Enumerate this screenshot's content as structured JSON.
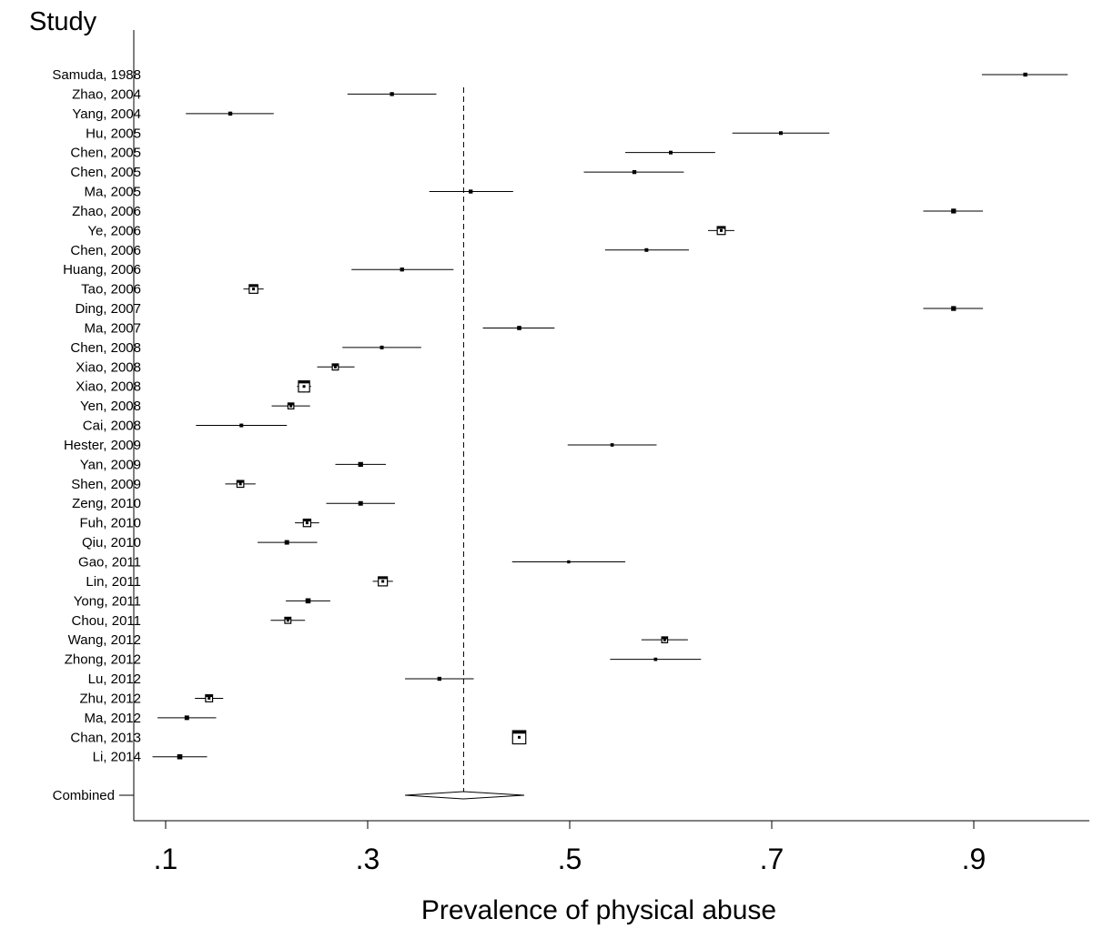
{
  "chart_data": {
    "type": "forest",
    "column_title": "Study",
    "xlabel": "Prevalence of physical abuse",
    "x_ticks": [
      ".1",
      ".3",
      ".5",
      ".7",
      ".9"
    ],
    "x_tick_values": [
      0.1,
      0.3,
      0.5,
      0.7,
      0.9
    ],
    "xlim": [
      0.07,
      1.0
    ],
    "reference_line": 0.395,
    "studies": [
      {
        "label": "Samuda, 1988",
        "estimate": 0.951,
        "lower": 0.908,
        "upper": 0.993,
        "weight": 0.6
      },
      {
        "label": "Zhao, 2004",
        "estimate": 0.324,
        "lower": 0.28,
        "upper": 0.368,
        "weight": 0.6
      },
      {
        "label": "Yang, 2004",
        "estimate": 0.164,
        "lower": 0.12,
        "upper": 0.207,
        "weight": 0.6
      },
      {
        "label": "Hu, 2005",
        "estimate": 0.709,
        "lower": 0.661,
        "upper": 0.757,
        "weight": 0.5
      },
      {
        "label": "Chen, 2005",
        "estimate": 0.6,
        "lower": 0.555,
        "upper": 0.644,
        "weight": 0.5
      },
      {
        "label": "Chen, 2005",
        "estimate": 0.564,
        "lower": 0.514,
        "upper": 0.613,
        "weight": 0.6
      },
      {
        "label": "Ma, 2005",
        "estimate": 0.402,
        "lower": 0.361,
        "upper": 0.444,
        "weight": 0.6
      },
      {
        "label": "Zhao, 2006",
        "estimate": 0.88,
        "lower": 0.85,
        "upper": 0.909,
        "weight": 0.9
      },
      {
        "label": "Ye, 2006",
        "estimate": 0.65,
        "lower": 0.637,
        "upper": 0.663,
        "weight": 2.2
      },
      {
        "label": "Chen, 2006",
        "estimate": 0.576,
        "lower": 0.535,
        "upper": 0.618,
        "weight": 0.5
      },
      {
        "label": "Huang, 2006",
        "estimate": 0.334,
        "lower": 0.284,
        "upper": 0.385,
        "weight": 0.6
      },
      {
        "label": "Tao, 2006",
        "estimate": 0.187,
        "lower": 0.177,
        "upper": 0.197,
        "weight": 2.5
      },
      {
        "label": "Ding, 2007",
        "estimate": 0.88,
        "lower": 0.85,
        "upper": 0.909,
        "weight": 0.9
      },
      {
        "label": "Ma, 2007",
        "estimate": 0.45,
        "lower": 0.414,
        "upper": 0.485,
        "weight": 0.7
      },
      {
        "label": "Chen, 2008",
        "estimate": 0.314,
        "lower": 0.275,
        "upper": 0.353,
        "weight": 0.5
      },
      {
        "label": "Xiao, 2008",
        "estimate": 0.268,
        "lower": 0.25,
        "upper": 0.287,
        "weight": 1.4
      },
      {
        "label": "Xiao, 2008",
        "estimate": 0.237,
        "lower": 0.23,
        "upper": 0.244,
        "weight": 3.6
      },
      {
        "label": "Yen, 2008",
        "estimate": 0.224,
        "lower": 0.205,
        "upper": 0.243,
        "weight": 1.3
      },
      {
        "label": "Cai, 2008",
        "estimate": 0.175,
        "lower": 0.13,
        "upper": 0.22,
        "weight": 0.5
      },
      {
        "label": "Hester, 2009",
        "estimate": 0.542,
        "lower": 0.498,
        "upper": 0.586,
        "weight": 0.4
      },
      {
        "label": "Yan, 2009",
        "estimate": 0.293,
        "lower": 0.268,
        "upper": 0.318,
        "weight": 0.9
      },
      {
        "label": "Shen, 2009",
        "estimate": 0.174,
        "lower": 0.159,
        "upper": 0.189,
        "weight": 1.7
      },
      {
        "label": "Zeng, 2010",
        "estimate": 0.293,
        "lower": 0.259,
        "upper": 0.327,
        "weight": 0.8
      },
      {
        "label": "Fuh, 2010",
        "estimate": 0.24,
        "lower": 0.228,
        "upper": 0.252,
        "weight": 2.0
      },
      {
        "label": "Qiu, 2010",
        "estimate": 0.22,
        "lower": 0.191,
        "upper": 0.25,
        "weight": 0.8
      },
      {
        "label": "Gao, 2011",
        "estimate": 0.499,
        "lower": 0.443,
        "upper": 0.555,
        "weight": 0.3
      },
      {
        "label": "Lin, 2011",
        "estimate": 0.315,
        "lower": 0.305,
        "upper": 0.325,
        "weight": 2.7
      },
      {
        "label": "Yong, 2011",
        "estimate": 0.241,
        "lower": 0.219,
        "upper": 0.263,
        "weight": 1.0
      },
      {
        "label": "Chou, 2011",
        "estimate": 0.221,
        "lower": 0.204,
        "upper": 0.238,
        "weight": 1.4
      },
      {
        "label": "Wang, 2012",
        "estimate": 0.594,
        "lower": 0.571,
        "upper": 0.617,
        "weight": 1.3
      },
      {
        "label": "Zhong, 2012",
        "estimate": 0.585,
        "lower": 0.54,
        "upper": 0.63,
        "weight": 0.4
      },
      {
        "label": "Lu, 2012",
        "estimate": 0.371,
        "lower": 0.337,
        "upper": 0.405,
        "weight": 0.6
      },
      {
        "label": "Zhu, 2012",
        "estimate": 0.143,
        "lower": 0.129,
        "upper": 0.157,
        "weight": 1.8
      },
      {
        "label": "Ma, 2012",
        "estimate": 0.121,
        "lower": 0.092,
        "upper": 0.15,
        "weight": 0.8
      },
      {
        "label": "Chan, 2013",
        "estimate": 0.45,
        "lower": 0.445,
        "upper": 0.455,
        "weight": 4.5
      },
      {
        "label": "Li, 2014",
        "estimate": 0.114,
        "lower": 0.087,
        "upper": 0.141,
        "weight": 1.0
      }
    ],
    "combined": {
      "label": "Combined",
      "estimate": 0.395,
      "lower": 0.337,
      "upper": 0.455
    }
  }
}
